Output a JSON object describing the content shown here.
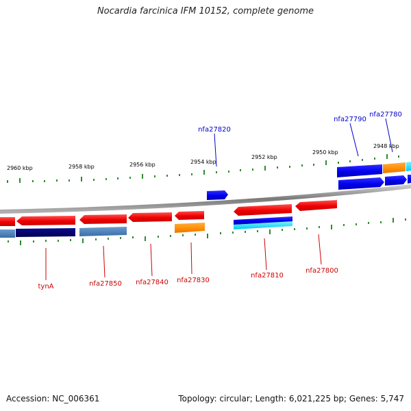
{
  "title": "Nocardia farcinica IFM 10152, complete genome",
  "footer": {
    "accession": "Accession: NC_006361",
    "summary": "Topology: circular; Length: 6,021,225 bp; Genes: 5,747"
  },
  "scale_labels": [
    "2960 kbp",
    "2958 kbp",
    "2956 kbp",
    "2954 kbp",
    "2952 kbp",
    "2950 kbp",
    "2948 kbp"
  ],
  "gene_labels": [
    {
      "name": "nfa27820",
      "strand": "forward",
      "color": "#0000cc"
    },
    {
      "name": "nfa27790",
      "strand": "forward",
      "color": "#0000cc"
    },
    {
      "name": "nfa27780",
      "strand": "forward",
      "color": "#0000cc"
    },
    {
      "name": "tynA",
      "strand": "reverse",
      "color": "#cc0000"
    },
    {
      "name": "nfa27850",
      "strand": "reverse",
      "color": "#cc0000"
    },
    {
      "name": "nfa27840",
      "strand": "reverse",
      "color": "#cc0000"
    },
    {
      "name": "nfa27830",
      "strand": "reverse",
      "color": "#cc0000"
    },
    {
      "name": "nfa27810",
      "strand": "reverse",
      "color": "#cc0000"
    },
    {
      "name": "nfa27800",
      "strand": "reverse",
      "color": "#cc0000"
    }
  ],
  "colors": {
    "forward_gene": "#0000ee",
    "reverse_gene": "#ee0000",
    "orange_feature": "#ff8c00",
    "cyan_feature": "#00e0ff",
    "steel_feature": "#4a7fb5",
    "navy_feature": "#00006e",
    "tick": "#2e8b2e",
    "backbone": "#8a8a8a"
  }
}
